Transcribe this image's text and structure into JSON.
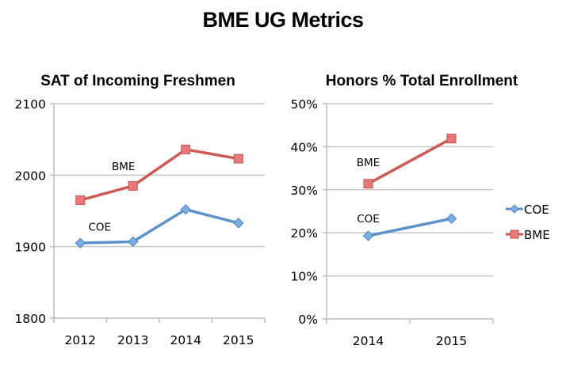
{
  "title": "BME UG Metrics",
  "chart_data": [
    {
      "type": "line",
      "title": "SAT of Incoming Freshmen",
      "xlabel": "",
      "ylabel": "",
      "categories": [
        "2012",
        "2013",
        "2014",
        "2015"
      ],
      "ylim": [
        1800,
        2100
      ],
      "yticks": [
        1800,
        1900,
        2000,
        2100
      ],
      "ytick_labels": [
        "1800",
        "1900",
        "2000",
        "2100"
      ],
      "grid": true,
      "legend": "none",
      "series": [
        {
          "name": "COE",
          "color": "#5b92cc",
          "marker": "diamond",
          "values": [
            1905,
            1907,
            1952,
            1933
          ],
          "annotation": "COE"
        },
        {
          "name": "BME",
          "color": "#cc5b57",
          "marker": "square",
          "values": [
            1965,
            1985,
            2036,
            2023
          ],
          "annotation": "BME"
        }
      ]
    },
    {
      "type": "line",
      "title": "Honors % Total Enrollment",
      "xlabel": "",
      "ylabel": "",
      "categories": [
        "2014",
        "2015"
      ],
      "ylim": [
        0,
        50
      ],
      "yticks": [
        0,
        10,
        20,
        30,
        40,
        50
      ],
      "ytick_labels": [
        "0%",
        "10%",
        "20%",
        "30%",
        "40%",
        "50%"
      ],
      "grid": true,
      "legend": "right",
      "series": [
        {
          "name": "COE",
          "color": "#5b92cc",
          "marker": "diamond",
          "values": [
            19.3,
            23.3
          ],
          "annotation": "COE"
        },
        {
          "name": "BME",
          "color": "#cc5b57",
          "marker": "square",
          "values": [
            31.4,
            41.9
          ],
          "annotation": "BME"
        }
      ]
    }
  ]
}
